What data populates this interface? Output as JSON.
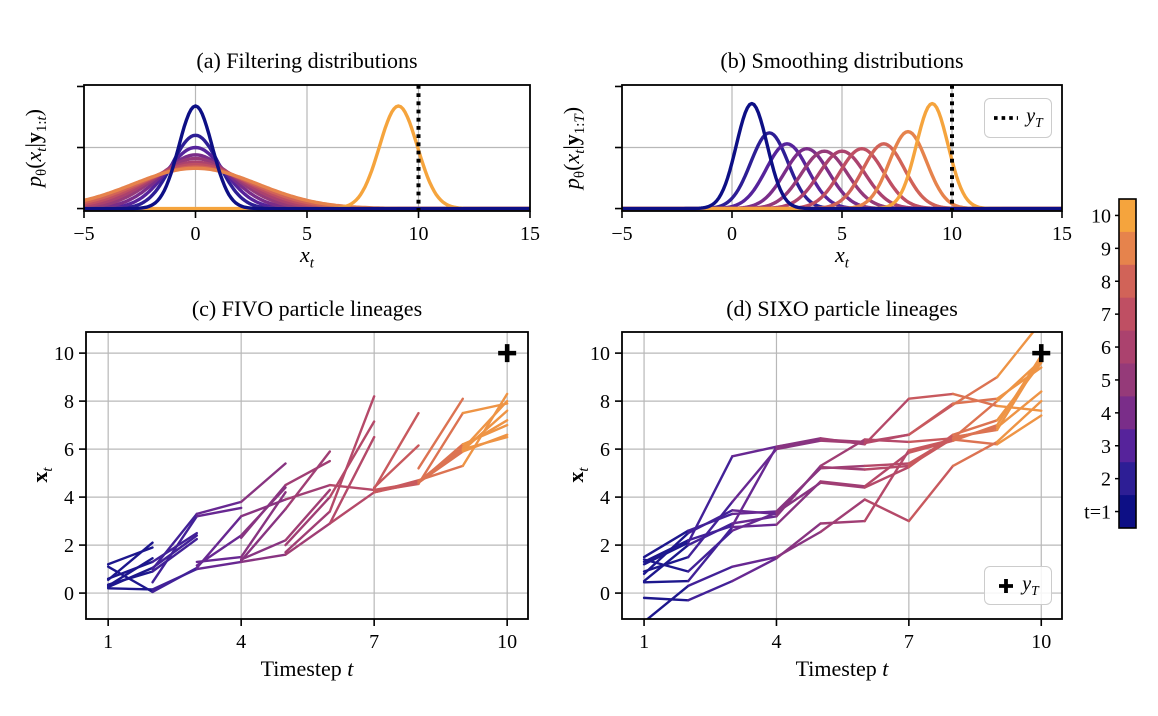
{
  "figure": {
    "background": "#ffffff",
    "grid_color": "#b8b8b8",
    "spine_color": "#000000",
    "observation_color": "#000000",
    "colormap": {
      "description": "particle timestep t = 1..10, dark navy to orange",
      "t_values": [
        1,
        2,
        3,
        4,
        5,
        6,
        7,
        8,
        9,
        10
      ],
      "colors": [
        "#0d0f85",
        "#2d1e95",
        "#56239b",
        "#7a2d89",
        "#953a79",
        "#ab426e",
        "#bf4f63",
        "#d16358",
        "#e6834c",
        "#f5a43d"
      ]
    }
  },
  "colorbar": {
    "labels_top_to_bottom": [
      "10",
      "9",
      "8",
      "7",
      "6",
      "5",
      "4",
      "3",
      "2",
      "t=1"
    ]
  },
  "chart_data": [
    {
      "panel": "a",
      "type": "line",
      "title": "(a) Filtering distributions",
      "xlabel": "*x*_{*t*}",
      "ylabel": "*p*_{θ}(*x*_{*t*}|**y**_{1:*t*})",
      "xlim": [
        -5,
        15
      ],
      "ylim": [
        -0.02,
        1.012
      ],
      "xticks": [
        -5,
        0,
        5,
        10,
        15
      ],
      "ytick_amps": [
        0,
        0.5,
        1
      ],
      "grid_x": [
        0,
        5,
        10
      ],
      "grid_y": [
        0.5
      ],
      "observation_line_x": 10,
      "draw_order": [
        2,
        3,
        4,
        5,
        6,
        7,
        8,
        9,
        10,
        1
      ],
      "curves": [
        {
          "t": 1,
          "mean": 0,
          "sigma": 0.75,
          "amp": 0.84
        },
        {
          "t": 2,
          "mean": 0,
          "sigma": 1.05,
          "amp": 0.6
        },
        {
          "t": 3,
          "mean": 0,
          "sigma": 1.3,
          "amp": 0.5
        },
        {
          "t": 4,
          "mean": 0,
          "sigma": 1.55,
          "amp": 0.44
        },
        {
          "t": 5,
          "mean": 0,
          "sigma": 1.8,
          "amp": 0.41
        },
        {
          "t": 6,
          "mean": 0,
          "sigma": 2.05,
          "amp": 0.38
        },
        {
          "t": 7,
          "mean": 0,
          "sigma": 2.3,
          "amp": 0.36
        },
        {
          "t": 8,
          "mean": 0,
          "sigma": 2.55,
          "amp": 0.34
        },
        {
          "t": 9,
          "mean": 0,
          "sigma": 2.8,
          "amp": 0.33
        },
        {
          "t": 10,
          "mean": 9.1,
          "sigma": 0.85,
          "amp": 0.84
        }
      ]
    },
    {
      "panel": "b",
      "type": "line",
      "title": "(b) Smoothing distributions",
      "xlabel": "*x*_{*t*}",
      "ylabel": "*p*_{θ}(*x*_{*t*}|**y**_{1:*T*})",
      "xlim": [
        -5,
        15
      ],
      "ylim": [
        -0.02,
        1.012
      ],
      "xticks": [
        -5,
        0,
        5,
        10,
        15
      ],
      "ytick_amps": [
        0,
        0.5,
        1
      ],
      "grid_x": [
        0,
        5,
        10
      ],
      "grid_y": [
        0.5
      ],
      "observation_line_x": 10,
      "legend": {
        "label": "*y*_{*T*}",
        "sample": "dotted-line",
        "position": "top-right"
      },
      "draw_order": [
        2,
        3,
        4,
        5,
        6,
        7,
        8,
        9,
        10,
        1
      ],
      "curves": [
        {
          "t": 1,
          "mean": 0.9,
          "sigma": 0.7,
          "amp": 0.86
        },
        {
          "t": 2,
          "mean": 1.7,
          "sigma": 0.85,
          "amp": 0.62
        },
        {
          "t": 3,
          "mean": 2.5,
          "sigma": 0.95,
          "amp": 0.53
        },
        {
          "t": 4,
          "mean": 3.4,
          "sigma": 1.0,
          "amp": 0.49
        },
        {
          "t": 5,
          "mean": 4.2,
          "sigma": 1.05,
          "amp": 0.47
        },
        {
          "t": 6,
          "mean": 5.0,
          "sigma": 1.05,
          "amp": 0.47
        },
        {
          "t": 7,
          "mean": 5.9,
          "sigma": 1.0,
          "amp": 0.49
        },
        {
          "t": 8,
          "mean": 6.9,
          "sigma": 0.95,
          "amp": 0.53
        },
        {
          "t": 9,
          "mean": 8.0,
          "sigma": 0.85,
          "amp": 0.63
        },
        {
          "t": 10,
          "mean": 9.1,
          "sigma": 0.72,
          "amp": 0.86
        }
      ]
    },
    {
      "panel": "c",
      "type": "line",
      "title": "(c) FIVO particle lineages",
      "xlabel": "Timestep *t*",
      "ylabel": "**x**_{*t*}",
      "xlim": [
        0.5,
        10.47
      ],
      "ylim": [
        -1.08,
        10.88
      ],
      "xticks": [
        1,
        4,
        7,
        10
      ],
      "yticks": [
        0,
        2,
        4,
        6,
        8,
        10
      ],
      "observation_marker": {
        "t": 10,
        "x": 10
      },
      "lineages": [
        {
          "t0": 1,
          "xs": [
            0.3,
            1.45
          ]
        },
        {
          "t0": 1,
          "xs": [
            0.55,
            2.1
          ]
        },
        {
          "t0": 1,
          "xs": [
            1.2,
            1.9
          ]
        },
        {
          "t0": 1,
          "xs": [
            0.35,
            0.9,
            2.25
          ]
        },
        {
          "t0": 1,
          "xs": [
            0.25,
            1.05,
            2.4
          ]
        },
        {
          "t0": 1,
          "xs": [
            0.6,
            1.3,
            2.5
          ]
        },
        {
          "t0": 2,
          "xs": [
            1.0,
            3.3,
            3.8,
            5.4
          ]
        },
        {
          "t0": 2,
          "xs": [
            0.45,
            3.2,
            3.55
          ]
        },
        {
          "t0": 3,
          "xs": [
            1.15,
            2.4,
            4.4
          ]
        },
        {
          "t0": 3,
          "xs": [
            1.3,
            1.5,
            4.2
          ]
        },
        {
          "t0": 4,
          "xs": [
            1.35,
            3.5,
            5.9
          ]
        },
        {
          "t0": 4,
          "xs": [
            2.3,
            4.5,
            5.5
          ]
        },
        {
          "t0": 4,
          "xs": [
            1.4,
            2.2,
            4.3
          ]
        },
        {
          "t0": 5,
          "xs": [
            1.7,
            3.4,
            8.2
          ]
        },
        {
          "t0": 5,
          "xs": [
            2.0,
            4.0,
            7.15
          ]
        },
        {
          "t0": 6,
          "xs": [
            2.9,
            6.5
          ]
        },
        {
          "t0": 7,
          "xs": [
            4.35,
            7.5
          ]
        },
        {
          "t0": 7,
          "xs": [
            4.4,
            6.15
          ]
        },
        {
          "t0": 8,
          "xs": [
            5.2,
            8.1
          ]
        },
        {
          "t0": 1,
          "xs": [
            0.2,
            0.15,
            1.0,
            1.3,
            1.6,
            2.9,
            4.2,
            4.6,
            5.9,
            6.6
          ]
        },
        {
          "t0": 1,
          "xs": [
            1.1,
            0.05,
            1.05,
            3.2,
            3.9,
            4.5,
            4.3,
            4.6,
            6.0,
            8.0
          ]
        },
        {
          "t0": 7,
          "xs": [
            4.2,
            4.7,
            5.3,
            8.3
          ]
        },
        {
          "t0": 7,
          "xs": [
            4.25,
            4.55,
            7.5,
            7.9
          ]
        },
        {
          "t0": 7,
          "xs": [
            4.2,
            4.65,
            6.1,
            7.2
          ]
        },
        {
          "t0": 8,
          "xs": [
            4.6,
            6.2,
            7.0
          ]
        },
        {
          "t0": 9,
          "xs": [
            6.0,
            6.5
          ]
        },
        {
          "t0": 9,
          "xs": [
            5.95,
            7.6
          ]
        }
      ]
    },
    {
      "panel": "d",
      "type": "line",
      "title": "(d) SIXO particle lineages",
      "xlabel": "Timestep *t*",
      "ylabel": "**x**_{*t*}",
      "xlim": [
        0.5,
        10.47
      ],
      "ylim": [
        -1.08,
        10.88
      ],
      "xticks": [
        1,
        4,
        7,
        10
      ],
      "yticks": [
        0,
        2,
        4,
        6,
        8,
        10
      ],
      "observation_marker": {
        "t": 10,
        "x": 10
      },
      "legend": {
        "label": "*y*_{*T*}",
        "sample": "plus-marker",
        "position": "bottom-right"
      },
      "lineages": [
        {
          "t0": 1,
          "xs": [
            1.5,
            2.6,
            3.3,
            3.4,
            5.2,
            5.3,
            5.4,
            6.5,
            6.8,
            9.8
          ]
        },
        {
          "t0": 1,
          "xs": [
            1.3,
            2.2,
            2.8,
            6.1,
            6.4,
            6.3,
            6.6,
            7.9,
            8.1,
            9.4
          ]
        },
        {
          "t0": 1,
          "xs": [
            1.2,
            2.1,
            5.7,
            6.1,
            6.45,
            6.2,
            8.1,
            8.3,
            7.8,
            7.6
          ]
        },
        {
          "t0": 1,
          "xs": [
            0.9,
            1.5,
            3.8,
            6.0,
            6.35,
            6.25,
            6.6,
            7.85,
            9.0,
            11.3
          ]
        },
        {
          "t0": 1,
          "xs": [
            0.8,
            2.5,
            3.45,
            3.3,
            5.25,
            5.15,
            5.3,
            6.45,
            6.9,
            8.4
          ]
        },
        {
          "t0": 1,
          "xs": [
            0.45,
            0.5,
            2.75,
            2.85,
            4.65,
            4.45,
            5.85,
            6.35,
            7.0,
            9.9
          ]
        },
        {
          "t0": 1,
          "xs": [
            -0.2,
            -0.3,
            0.5,
            1.45,
            2.9,
            3.0,
            5.95,
            6.4,
            6.2,
            7.4
          ]
        },
        {
          "t0": 1,
          "xs": [
            -1.2,
            0.3,
            1.1,
            1.5,
            2.55,
            3.9,
            3.0,
            5.3,
            6.3,
            8.0
          ]
        },
        {
          "t0": 1,
          "xs": [
            1.4,
            0.9,
            2.6,
            3.35,
            4.6,
            4.4,
            5.25,
            6.6,
            7.2,
            9.6
          ]
        },
        {
          "t0": 1,
          "xs": [
            0.5,
            2.0,
            2.9,
            3.2,
            5.3,
            6.4,
            6.3,
            6.45,
            8.0,
            9.7
          ]
        }
      ]
    }
  ]
}
